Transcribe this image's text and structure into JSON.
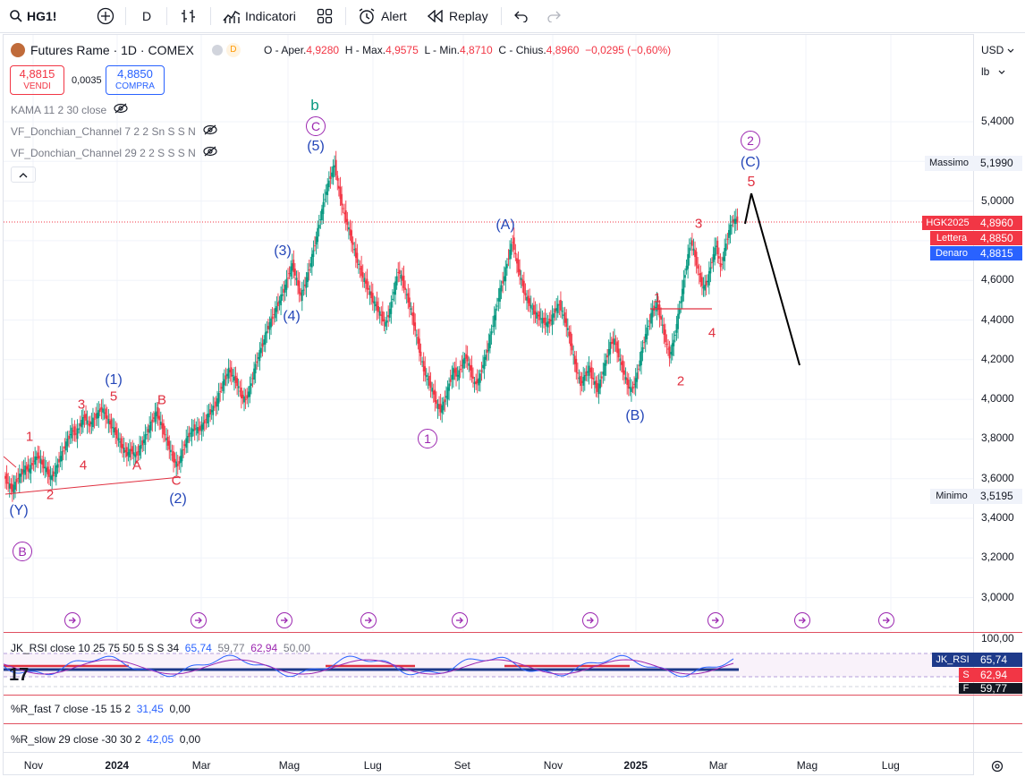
{
  "toolbar": {
    "symbol": "HG1!",
    "interval": "D",
    "indicators_label": "Indicatori",
    "alert_label": "Alert",
    "replay_label": "Replay",
    "icons": [
      "search-icon",
      "add-symbol-icon",
      "compare-icon",
      "indicators-icon",
      "layouts-icon",
      "alert-icon",
      "replay-icon",
      "undo-icon",
      "redo-icon"
    ]
  },
  "legend": {
    "title": "Futures Rame · 1D · COMEX",
    "badge": "D",
    "ohlc": {
      "o_label": "O - Aper.",
      "o": "4,9280",
      "h_label": "H - Max.",
      "h": "4,9575",
      "l_label": "L - Min.",
      "l": "4,8710",
      "c_label": "C - Chius.",
      "c": "4,8960",
      "change": "−0,0295 (−0,60%)"
    },
    "sell_price": "4,8815",
    "sell_label": "VENDI",
    "spread": "0,0035",
    "buy_price": "4,8850",
    "buy_label": "COMPRA",
    "indicators": [
      "KAMA 11 2 30 close",
      "VF_Donchian_Channel 7 2 2 Sn S S N",
      "VF_Donchian_Channel 29 2 2 S S S N"
    ]
  },
  "price_axis": {
    "currency": "USD",
    "unit": "lb",
    "ticks": [
      "5,4000",
      "5,2000",
      "5,0000",
      "4,8000",
      "4,6000",
      "4,4000",
      "4,2000",
      "4,0000",
      "3,8000",
      "3,6000",
      "3,4000",
      "3,2000",
      "3,0000"
    ],
    "max_label": "Massimo",
    "max_value": "5,1990",
    "min_label": "Minimo",
    "min_value": "3,5195",
    "last_label": "HGK2025",
    "last_value": "4,8960",
    "ask_label": "Lettera",
    "ask_value": "4,8850",
    "bid_label": "Denaro",
    "bid_value": "4,8815"
  },
  "time_axis": [
    "Nov",
    "2024",
    "Mar",
    "Mag",
    "Lug",
    "Set",
    "Nov",
    "2025",
    "Mar",
    "Mag",
    "Lug"
  ],
  "wave_labels": [
    "1",
    "2",
    "3",
    "4",
    "5",
    "A",
    "B",
    "C",
    "(1)",
    "(2)",
    "(3)",
    "(4)",
    "(5)",
    "(Y)",
    "(A)",
    "(B)",
    "(C)",
    "1",
    "2",
    "3",
    "4",
    "5",
    "b",
    "C",
    "B",
    "1",
    "2"
  ],
  "rsi_pane": {
    "label": "JK_RSI close 10 25 75 50 5 S S 34",
    "v1": "65,74",
    "v2": "59,77",
    "v3": "62,94",
    "v4": "50,00",
    "axis_top": "100,00",
    "tag_rsi_label": "JK_RSI",
    "tag_rsi_value": "65,74",
    "tag_s_label": "S",
    "tag_s_value": "62,94",
    "tag_f_label": "F",
    "tag_f_value": "59,77"
  },
  "r_fast_pane": {
    "label": "%R_fast 7 close -15 15 2",
    "v1": "31,45",
    "v2": "0,00"
  },
  "r_slow_pane": {
    "label": "%R_slow 29 close -30 30 2",
    "v1": "42,05",
    "v2": "0,00"
  },
  "colors": {
    "red": "#f23645",
    "blue": "#2962ff",
    "green": "#089981",
    "purple": "#9c27b0",
    "wave_blue": "#2446b8",
    "wave_red": "#e03040"
  },
  "chart_data": {
    "type": "candlestick",
    "ylim": [
      2.9,
      5.5
    ],
    "closes": [
      3.62,
      3.58,
      3.55,
      3.6,
      3.63,
      3.66,
      3.65,
      3.7,
      3.72,
      3.68,
      3.65,
      3.61,
      3.64,
      3.7,
      3.75,
      3.8,
      3.85,
      3.83,
      3.88,
      3.92,
      3.87,
      3.9,
      3.93,
      3.96,
      3.92,
      3.88,
      3.85,
      3.8,
      3.76,
      3.73,
      3.75,
      3.72,
      3.76,
      3.8,
      3.85,
      3.9,
      3.94,
      3.88,
      3.82,
      3.76,
      3.7,
      3.67,
      3.74,
      3.8,
      3.84,
      3.86,
      3.85,
      3.88,
      3.92,
      3.95,
      3.98,
      4.05,
      4.1,
      4.15,
      4.12,
      4.08,
      4.02,
      4.0,
      4.06,
      4.15,
      4.22,
      4.28,
      4.35,
      4.4,
      4.45,
      4.5,
      4.55,
      4.62,
      4.68,
      4.6,
      4.52,
      4.58,
      4.66,
      4.75,
      4.85,
      4.95,
      5.05,
      5.12,
      5.18,
      5.05,
      4.95,
      4.88,
      4.8,
      4.72,
      4.65,
      4.6,
      4.55,
      4.5,
      4.46,
      4.42,
      4.38,
      4.45,
      4.55,
      4.65,
      4.6,
      4.52,
      4.45,
      4.35,
      4.25,
      4.15,
      4.1,
      4.05,
      3.98,
      3.95,
      4.0,
      4.08,
      4.15,
      4.12,
      4.18,
      4.22,
      4.15,
      4.08,
      4.1,
      4.18,
      4.25,
      4.35,
      4.45,
      4.55,
      4.62,
      4.72,
      4.8,
      4.68,
      4.6,
      4.52,
      4.48,
      4.44,
      4.42,
      4.4,
      4.38,
      4.4,
      4.45,
      4.48,
      4.42,
      4.35,
      4.25,
      4.15,
      4.08,
      4.12,
      4.16,
      4.1,
      4.05,
      4.12,
      4.2,
      4.28,
      4.3,
      4.22,
      4.15,
      4.08,
      4.05,
      4.1,
      4.2,
      4.3,
      4.38,
      4.45,
      4.48,
      4.4,
      4.3,
      4.22,
      4.3,
      4.42,
      4.55,
      4.68,
      4.8,
      4.72,
      4.62,
      4.56,
      4.6,
      4.7,
      4.78,
      4.66,
      4.75,
      4.85,
      4.9,
      4.9
    ]
  }
}
